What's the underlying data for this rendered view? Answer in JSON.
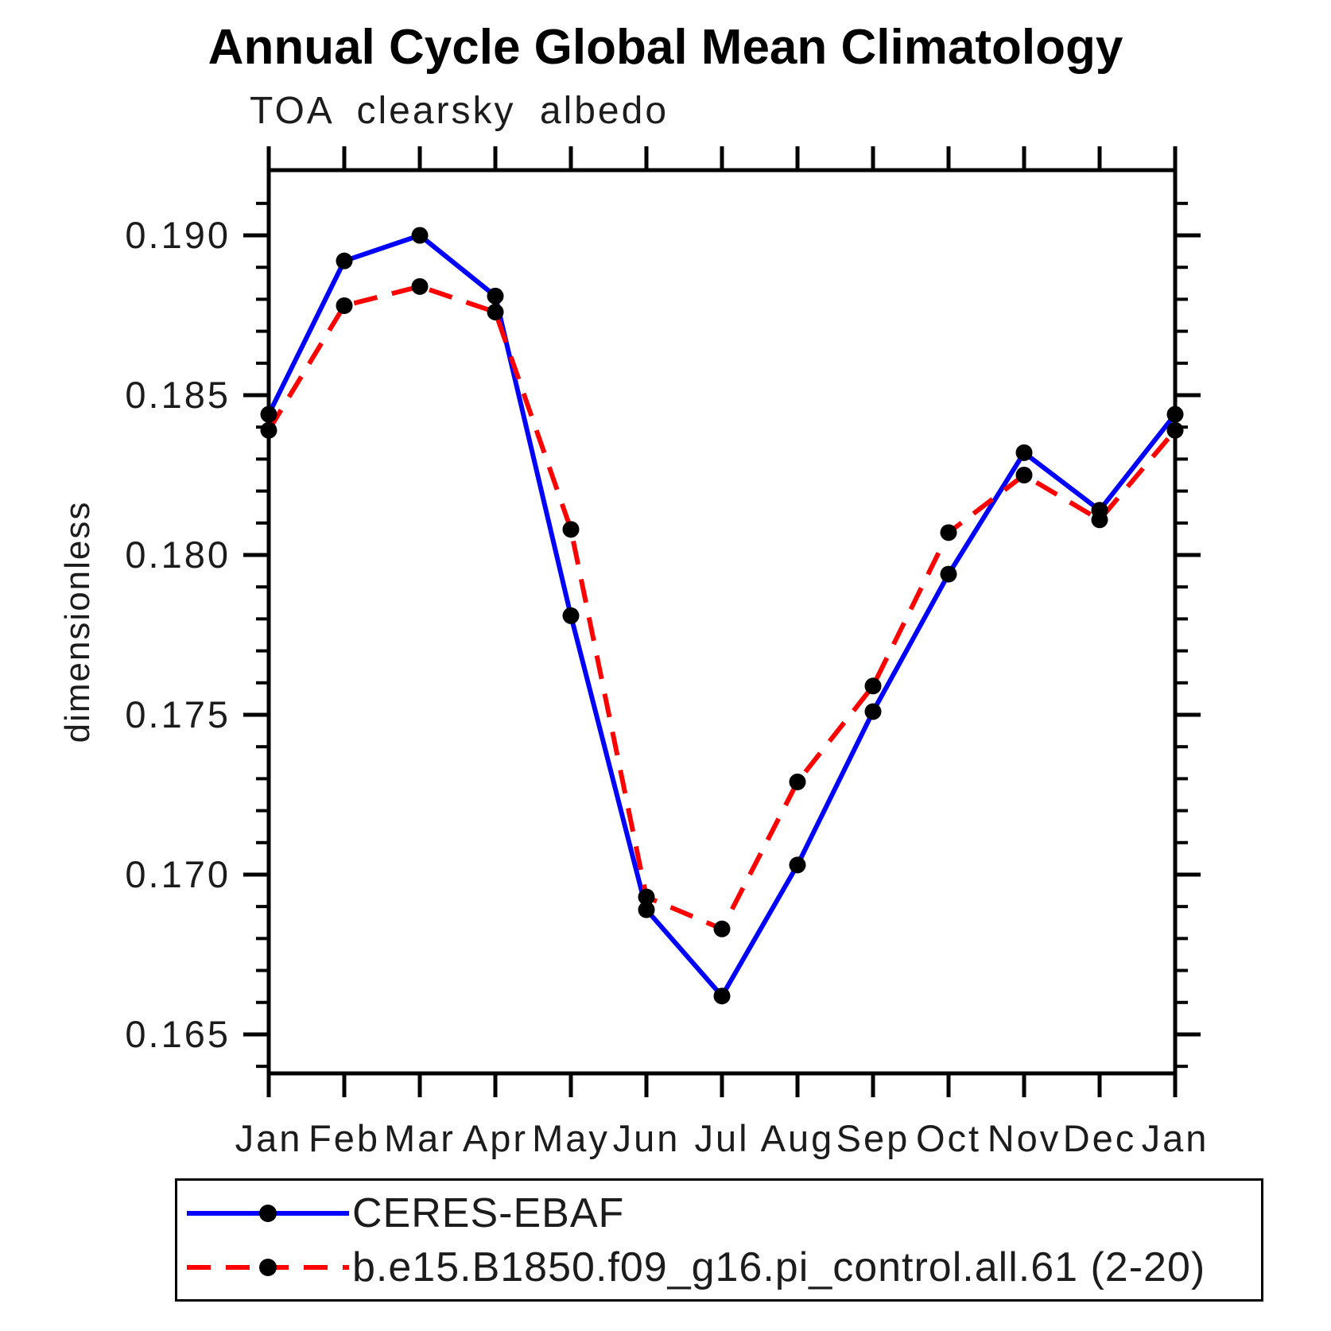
{
  "title": "Annual Cycle Global Mean Climatology",
  "subtitle": "TOA clearsky albedo",
  "ylabel": "dimensionless",
  "chart_data": {
    "type": "line",
    "title": "Annual Cycle Global Mean Climatology",
    "subtitle": "TOA clearsky albedo",
    "ylabel": "dimensionless",
    "x_categories": [
      "Jan",
      "Feb",
      "Mar",
      "Apr",
      "May",
      "Jun",
      "Jul",
      "Aug",
      "Sep",
      "Oct",
      "Nov",
      "Dec",
      "Jan"
    ],
    "series": [
      {
        "name": "CERES-EBAF",
        "color": "#0000ff",
        "line_style": "solid",
        "marker": "filled-circle",
        "marker_color": "#000000",
        "values": [
          0.1844,
          0.1892,
          0.19,
          0.1881,
          0.1781,
          0.1689,
          0.1662,
          0.1703,
          0.1751,
          0.1794,
          0.1832,
          0.1814,
          0.1844
        ]
      },
      {
        "name": "b.e15.B1850.f09_g16.pi_control.all.61 (2-20)",
        "color": "#ff0000",
        "line_style": "dashed",
        "marker": "filled-circle",
        "marker_color": "#000000",
        "values": [
          0.1839,
          0.1878,
          0.1884,
          0.1876,
          0.1808,
          0.1693,
          0.1683,
          0.1729,
          0.1759,
          0.1807,
          0.1825,
          0.1811,
          0.1839
        ]
      }
    ],
    "ylim": [
      0.16378,
      0.19204
    ],
    "yticks_major": [
      0.165,
      0.17,
      0.175,
      0.18,
      0.185,
      0.19
    ],
    "ytick_labels": [
      "0.165",
      "0.170",
      "0.175",
      "0.180",
      "0.185",
      "0.190"
    ],
    "ytick_minor_step": 0.001,
    "grid": false,
    "legend_position": "bottom-left-box"
  },
  "axis_color": "#000000"
}
